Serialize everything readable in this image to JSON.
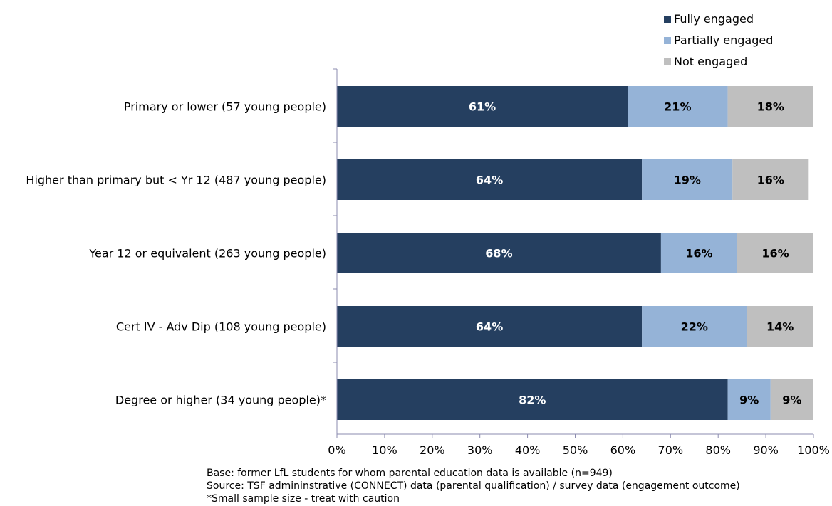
{
  "colors": {
    "fully": "#253F60",
    "partially": "#95B3D7",
    "not": "#BFBFBF",
    "axis": "#8B8BAF",
    "label_on_dark": "#ffffff",
    "label_on_light": "#000000"
  },
  "notes": {
    "base": "Base: former LfL students  for whom parental education data is available (n=949)",
    "source": "Source: TSF admininstrative (CONNECT) data  (parental qualification) / survey data (engagement outcome)",
    "caveat": "*Small sample size - treat with caution"
  },
  "chart_data": {
    "type": "bar",
    "orientation": "horizontal",
    "stacked": true,
    "percent_stacked": true,
    "categories": [
      "Primary or lower (57 young people)",
      "Higher than primary but < Yr 12 (487 young people)",
      "Year 12 or equivalent (263 young people)",
      "Cert IV - Adv Dip (108 young people)",
      "Degree or higher (34 young people)*"
    ],
    "series": [
      {
        "name": "Fully engaged",
        "values": [
          61,
          64,
          68,
          64,
          82
        ],
        "labels": [
          "61%",
          "64%",
          "68%",
          "64%",
          "82%"
        ],
        "color": "#253F60"
      },
      {
        "name": "Partially engaged",
        "values": [
          21,
          19,
          16,
          22,
          9
        ],
        "labels": [
          "21%",
          "19%",
          "16%",
          "22%",
          "9%"
        ],
        "color": "#95B3D7"
      },
      {
        "name": "Not engaged",
        "values": [
          18,
          16,
          16,
          14,
          9
        ],
        "labels": [
          "18%",
          "16%",
          "16%",
          "14%",
          "9%"
        ],
        "color": "#BFBFBF"
      }
    ],
    "xlim": [
      0,
      100
    ],
    "xticks": [
      "0%",
      "10%",
      "20%",
      "30%",
      "40%",
      "50%",
      "60%",
      "70%",
      "80%",
      "90%",
      "100%"
    ],
    "legend_position": "top-right",
    "grid": false
  }
}
